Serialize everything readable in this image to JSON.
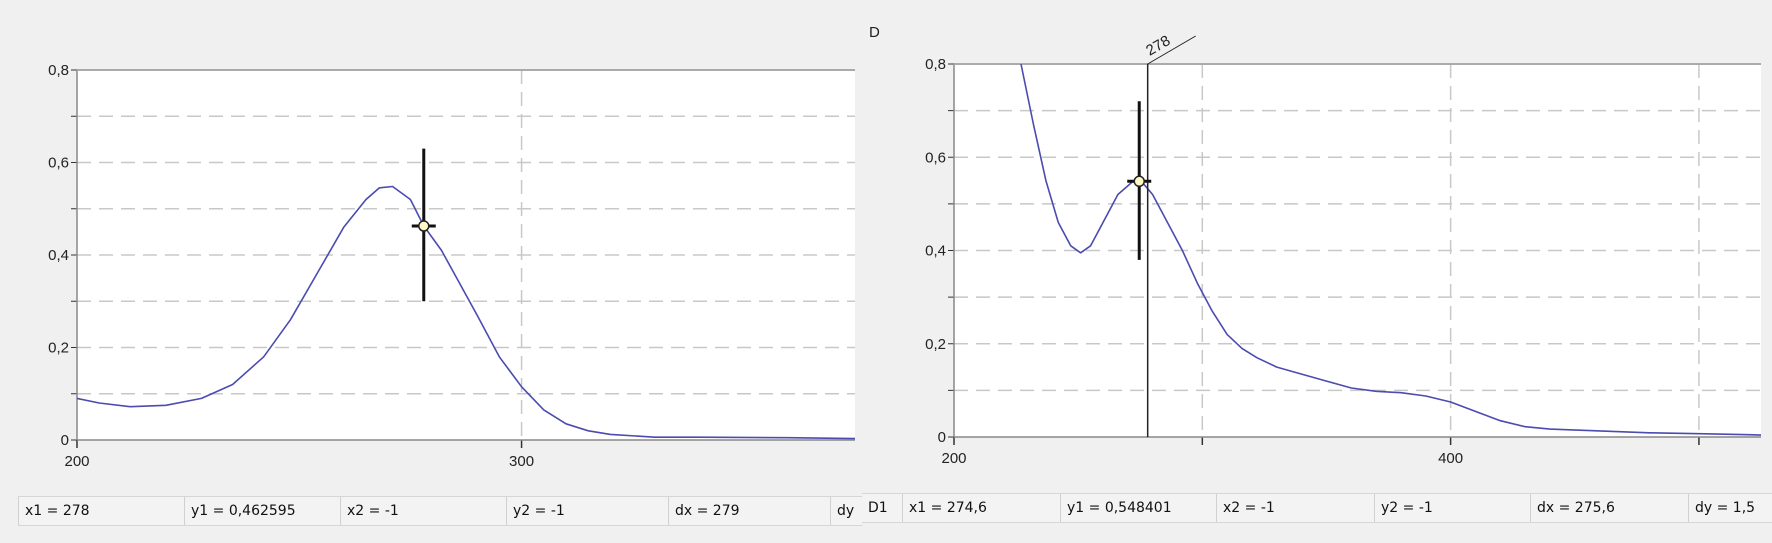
{
  "left_panel": {
    "status": {
      "x1": "x1 = 278",
      "y1": "y1 = 0,462595",
      "x2": "x2 = -1",
      "y2": "y2 = -1",
      "dx": "dx = 279",
      "dy": "dy"
    }
  },
  "right_panel": {
    "panel_label": "D",
    "cursor_label": "278",
    "status": {
      "id": "D1",
      "x1": "x1 = 274,6",
      "y1": "y1 = 0,548401",
      "x2": "x2 = -1",
      "y2": "y2 = -1",
      "dx": "dx = 275,6",
      "dy": "dy = 1,5"
    }
  },
  "colors": {
    "curve": "#4b4bb0",
    "grid": "#c8c8c8",
    "background": "#f0f0f0",
    "plot": "#ffffff"
  },
  "chart_data": [
    {
      "type": "line",
      "xlim": [
        200,
        375
      ],
      "ylim": [
        0,
        0.8
      ],
      "x_ticks": [
        {
          "v": 200,
          "label": "200"
        },
        {
          "v": 300,
          "label": "300"
        }
      ],
      "y_ticks": [
        {
          "v": 0,
          "label": "0"
        },
        {
          "v": 0.1,
          "label": ""
        },
        {
          "v": 0.2,
          "label": "0,2"
        },
        {
          "v": 0.3,
          "label": ""
        },
        {
          "v": 0.4,
          "label": "0,4"
        },
        {
          "v": 0.5,
          "label": ""
        },
        {
          "v": 0.6,
          "label": "0,6"
        },
        {
          "v": 0.7,
          "label": ""
        },
        {
          "v": 0.8,
          "label": "0,8"
        }
      ],
      "grid": true,
      "cursor": {
        "x": 278,
        "y": 0.462595,
        "bar": [
          0.3,
          0.63
        ]
      },
      "points": [
        [
          200,
          0.09
        ],
        [
          205,
          0.08
        ],
        [
          212,
          0.072
        ],
        [
          220,
          0.075
        ],
        [
          228,
          0.09
        ],
        [
          235,
          0.12
        ],
        [
          242,
          0.18
        ],
        [
          248,
          0.26
        ],
        [
          254,
          0.36
        ],
        [
          260,
          0.46
        ],
        [
          265,
          0.52
        ],
        [
          268,
          0.545
        ],
        [
          271,
          0.548
        ],
        [
          275,
          0.52
        ],
        [
          278,
          0.4626
        ],
        [
          282,
          0.41
        ],
        [
          286,
          0.34
        ],
        [
          290,
          0.27
        ],
        [
          295,
          0.18
        ],
        [
          300,
          0.115
        ],
        [
          305,
          0.065
        ],
        [
          310,
          0.035
        ],
        [
          315,
          0.02
        ],
        [
          320,
          0.012
        ],
        [
          330,
          0.006
        ],
        [
          340,
          0.006
        ],
        [
          360,
          0.005
        ],
        [
          375,
          0.003
        ]
      ]
    },
    {
      "type": "line",
      "xlim": [
        200,
        525
      ],
      "ylim": [
        0,
        0.8
      ],
      "x_ticks": [
        {
          "v": 200,
          "label": "200"
        },
        {
          "v": 300,
          "label": ""
        },
        {
          "v": 400,
          "label": "400"
        },
        {
          "v": 500,
          "label": ""
        }
      ],
      "y_ticks": [
        {
          "v": 0,
          "label": "0"
        },
        {
          "v": 0.1,
          "label": ""
        },
        {
          "v": 0.2,
          "label": "0,2"
        },
        {
          "v": 0.3,
          "label": ""
        },
        {
          "v": 0.4,
          "label": "0,4"
        },
        {
          "v": 0.5,
          "label": ""
        },
        {
          "v": 0.6,
          "label": "0,6"
        },
        {
          "v": 0.7,
          "label": ""
        },
        {
          "v": 0.8,
          "label": "0,8"
        }
      ],
      "grid": true,
      "cursor": {
        "x": 274.6,
        "y": 0.548401,
        "bar": [
          0.38,
          0.72
        ]
      },
      "vline": 278,
      "points": [
        [
          227,
          0.8
        ],
        [
          232,
          0.67
        ],
        [
          237,
          0.55
        ],
        [
          242,
          0.46
        ],
        [
          247,
          0.41
        ],
        [
          251,
          0.395
        ],
        [
          255,
          0.41
        ],
        [
          260,
          0.46
        ],
        [
          266,
          0.52
        ],
        [
          272,
          0.548
        ],
        [
          276,
          0.545
        ],
        [
          280,
          0.52
        ],
        [
          286,
          0.46
        ],
        [
          292,
          0.4
        ],
        [
          298,
          0.33
        ],
        [
          304,
          0.27
        ],
        [
          310,
          0.22
        ],
        [
          316,
          0.19
        ],
        [
          322,
          0.17
        ],
        [
          330,
          0.15
        ],
        [
          340,
          0.135
        ],
        [
          350,
          0.12
        ],
        [
          360,
          0.105
        ],
        [
          370,
          0.098
        ],
        [
          380,
          0.095
        ],
        [
          390,
          0.088
        ],
        [
          400,
          0.075
        ],
        [
          410,
          0.055
        ],
        [
          420,
          0.035
        ],
        [
          430,
          0.022
        ],
        [
          440,
          0.017
        ],
        [
          460,
          0.013
        ],
        [
          480,
          0.009
        ],
        [
          500,
          0.007
        ],
        [
          520,
          0.005
        ],
        [
          525,
          0.004
        ]
      ]
    }
  ]
}
